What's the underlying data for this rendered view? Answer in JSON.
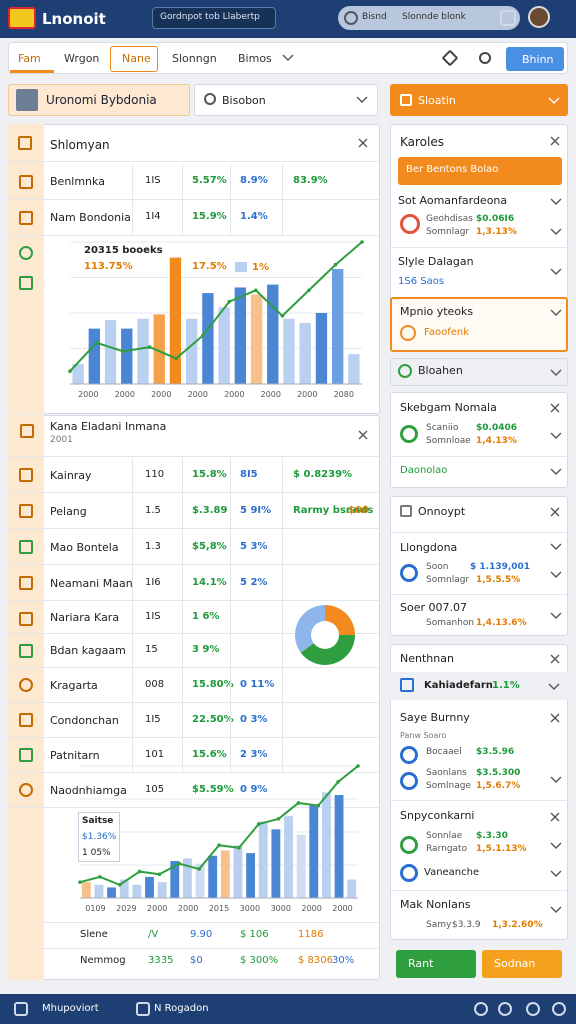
{
  "header": {
    "logo": "Lnonoit",
    "search": "Gordnpot tob Llabertp",
    "account": "Bisnd",
    "account_sub": "Slonnde blonk"
  },
  "nav": {
    "tabs": [
      "Fam",
      "Wrgon",
      "Nane",
      "Slonngn",
      "Bimos"
    ],
    "button": "Bhinn"
  },
  "toolbar": {
    "title": "Uronomi Bybdonia",
    "dropdown": "Bisobon"
  },
  "panel1": {
    "title": "Shlomyan",
    "rows": [
      [
        "Benlmnka",
        "1IS",
        "5.57%",
        "8.9%",
        "83.9%"
      ],
      [
        "Nam Bondonia",
        "1I4",
        "15.9%",
        "1.4%"
      ]
    ],
    "chart": {
      "type": "bar",
      "label": "20315 booeks",
      "value_a": "113.75%",
      "value_b": "17.5%",
      "value_c": "1%",
      "ylim": [
        0,
        100
      ],
      "categories": [
        "2000",
        "2000",
        "2000",
        "2000",
        "2000",
        "2000",
        "2000",
        "2080"
      ],
      "bars": [
        14,
        39,
        45,
        39,
        46,
        49,
        89,
        46,
        64,
        54,
        68,
        63,
        70,
        46,
        43,
        50,
        81,
        21
      ],
      "bar_colors": [
        "#b9d0f0",
        "#4a86d4",
        "#b9d0f0",
        "#4a86d4",
        "#b9d0f0",
        "#f5a04a",
        "#f28a1e",
        "#b9d0f0",
        "#4a86d4",
        "#b9d0f0",
        "#4a86d4",
        "#f8c08a",
        "#4a86d4",
        "#b9d0f0",
        "#b9d0f0",
        "#4a86d4",
        "#6aa0e0",
        "#b9d0f0"
      ],
      "line": [
        9,
        29,
        23,
        26,
        18,
        34,
        58,
        66,
        48,
        66,
        84,
        100
      ],
      "line_color": "#2e9e3e"
    }
  },
  "panel2": {
    "title": "Kana Eladani Inmana",
    "subtitle": "2001",
    "rows": [
      [
        "Kainray",
        "110",
        "15.8%",
        "8I5",
        "$ 0.8239%"
      ],
      [
        "Pelang",
        "1.5",
        "$.3.89",
        "5 9I%",
        "Rarmy bsnnds",
        "$00"
      ],
      [
        "Mao Bontela",
        "1.3",
        "$5,8%",
        "5 3%"
      ],
      [
        "Neamani Maan",
        "1I6",
        "14.1%",
        "5 2%"
      ],
      [
        "Nariara Kara",
        "1IS",
        "1 6%"
      ],
      [
        "Bdan kagaam",
        "15",
        "3 9%"
      ],
      [
        "Kragarta",
        "008",
        "15.80%",
        "0 11%"
      ],
      [
        "Condonchan",
        "1I5",
        "22.50%",
        "0 3%"
      ],
      [
        "Patnitarn",
        "101",
        "15.6%",
        "2 3%"
      ],
      [
        "Naodnhiamga",
        "105",
        "$5.59%",
        "0 9%"
      ]
    ],
    "pie": {
      "type": "pie",
      "values": [
        25,
        40,
        35
      ],
      "colors": [
        "#f28a1e",
        "#2e9e3e",
        "#8fb6ea"
      ]
    },
    "chart": {
      "type": "bar",
      "legend_title": "Saitse",
      "legend_a": "$1.36%",
      "legend_b": "1 05%",
      "ylim": [
        0,
        100
      ],
      "categories": [
        "0109",
        "2029",
        "2000",
        "2000",
        "2015",
        "3000",
        "3000",
        "2000",
        "2000"
      ],
      "bars": [
        12,
        10,
        8,
        14,
        10,
        16,
        12,
        28,
        30,
        26,
        32,
        36,
        40,
        34,
        58,
        52,
        62,
        48,
        70,
        80,
        78,
        14
      ],
      "bar_colors": [
        "#f8c08a",
        "#b9d0f0",
        "#4a86d4",
        "#b9d0f0",
        "#b9d0f0",
        "#4a86d4",
        "#b9d0f0",
        "#4a86d4",
        "#b9d0f0",
        "#cfdcf2",
        "#4a86d4",
        "#f8c08a",
        "#b9d0f0",
        "#4a86d4",
        "#b9d0f0",
        "#4a86d4",
        "#b9d0f0",
        "#cfdcf2",
        "#4a86d4",
        "#b9d0f0",
        "#4a86d4",
        "#b9d0f0"
      ],
      "line": [
        12,
        16,
        10,
        20,
        18,
        26,
        22,
        40,
        38,
        56,
        60,
        72,
        70,
        88,
        100
      ],
      "line_color": "#2e9e3e"
    },
    "footer_rows": [
      [
        "Slene",
        "/V",
        "9.90",
        "$ 106",
        "1186"
      ],
      [
        "Nemmog",
        "3335",
        "$0",
        "$ 300%",
        "$ 8306",
        "30%"
      ]
    ]
  },
  "side": {
    "header": "Sloatin",
    "p1": {
      "title": "Karoles",
      "button": "Ber Bentons Bolao",
      "i1_title": "Sot Aomanfardeona",
      "i1_l1": "Geohdisas",
      "i1_v1": "$0.06I6",
      "i1_l2": "Somnlagr",
      "i1_v2": "1,3.13%",
      "i2_title": "Slyle Dalagan",
      "i2_sub": "1S6 Saos",
      "i3_title": "Mpnio yteoks",
      "i3_sub": "Faoofenk"
    },
    "p2": {
      "title": "Bloahen"
    },
    "p3": {
      "title": "Skebgam Nomala",
      "l1": "Scaniio",
      "v1": "$0.0406",
      "l2": "Somnloae",
      "v2": "1,4.13%",
      "foot": "Daonolao"
    },
    "p4": {
      "title": "Onnoypt",
      "sub": "Llongdona",
      "l1": "Soon",
      "v1": "$ 1.139,001",
      "l2": "Somnlagr",
      "v2": "1,5.5.5%",
      "t2": "Soer 007.07",
      "l3": "Somanhon",
      "v3": "1,4.13.6%"
    },
    "p5": {
      "title": "Nenthnan",
      "tab": "Kahiadefarn",
      "tab_val": "1.1%",
      "sub": "Saye Burnny",
      "note": "Panw Soaro",
      "l1": "Bocaael",
      "v1": "$3.5.96",
      "l2": "Saonlans",
      "v2": "$3.5.300",
      "l3": "Somlnage",
      "v3": "1,5.6.7%",
      "t2": "Snpyconkarni",
      "l4": "Sonnlae",
      "v4": "$.3.30",
      "l5": "Rarngato",
      "v5": "1,5.1.13%",
      "t3": "Vaneanche",
      "t4": "Mak Nonlans",
      "l6": "Samy",
      "v6": "$3.3.9",
      "v7": "1,3.2.60%"
    },
    "buttons": [
      "Rant",
      "Sodnan"
    ]
  },
  "footer": {
    "left": "Mhupoviort",
    "right": "N Rogadon"
  }
}
